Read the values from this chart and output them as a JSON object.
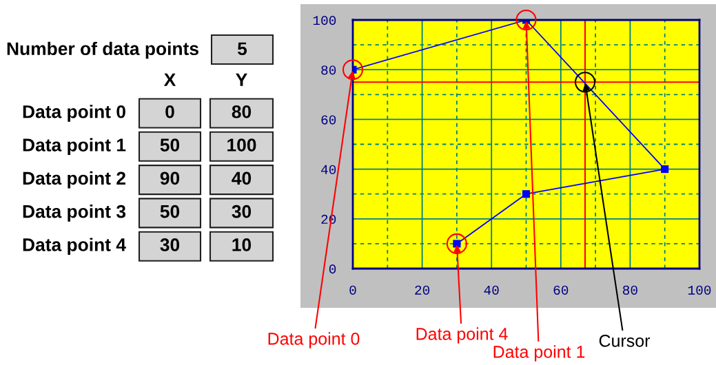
{
  "chart_data": [
    {
      "type": "other",
      "annotations": [
        "Number of data points",
        "5",
        "X",
        "Y",
        "Data point 0",
        "0",
        "80",
        "Data point 1",
        "50",
        "100",
        "Data point 2",
        "90",
        "40",
        "Data point 3",
        "50",
        "30",
        "Data point 4",
        "30",
        "10"
      ]
    },
    {
      "type": "line",
      "x": [
        0,
        50,
        90,
        50,
        30
      ],
      "series": [
        {
          "color": "#0000ff",
          "values": [
            80,
            100,
            40,
            30,
            10
          ]
        }
      ],
      "marker": "square",
      "line_style": "solid",
      "xlim": [
        0,
        100
      ],
      "ylim": [
        0,
        100
      ],
      "xticks": [
        0,
        {
          "value": 10,
          "label": null
        },
        20,
        {
          "value": 30,
          "label": null
        },
        40,
        {
          "value": 50,
          "label": null
        },
        60,
        {
          "value": 70,
          "label": null
        },
        80,
        {
          "value": 90,
          "label": null
        },
        100
      ],
      "yticks": [
        0,
        {
          "value": 10,
          "label": null
        },
        20,
        {
          "value": 30,
          "label": null
        },
        40,
        {
          "value": 50,
          "label": null
        },
        60,
        {
          "value": 70,
          "label": null
        },
        80,
        {
          "value": 90,
          "label": null
        },
        100
      ],
      "grid": true,
      "ref_lines": [
        {
          "axis": "x",
          "value": 67,
          "color": "#ff0000"
        },
        {
          "axis": "y",
          "value": 75,
          "color": "#ff0000"
        }
      ],
      "annotations": [
        {
          "text": "Data point 0",
          "x": 0,
          "y": 80
        },
        {
          "text": "Data point 4",
          "x": 30,
          "y": 10
        },
        {
          "text": "Data point 1",
          "x": 50,
          "y": 100
        },
        {
          "text": "Cursor",
          "x": 67,
          "y": 75
        }
      ]
    }
  ]
}
